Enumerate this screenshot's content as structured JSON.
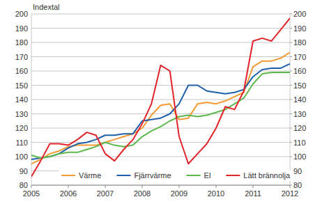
{
  "chart_data": {
    "type": "line",
    "y_label": "Indextal",
    "x": [
      2005,
      2005.25,
      2005.5,
      2005.75,
      2006,
      2006.25,
      2006.5,
      2006.75,
      2007,
      2007.25,
      2007.5,
      2007.75,
      2008,
      2008.25,
      2008.5,
      2008.75,
      2009,
      2009.25,
      2009.5,
      2009.75,
      2010,
      2010.25,
      2010.5,
      2010.75,
      2011,
      2011.25,
      2011.5,
      2011.75,
      2012
    ],
    "series": [
      {
        "name": "Värme",
        "color": "#f39a34",
        "values": [
          95,
          98,
          102,
          104,
          107,
          108,
          108,
          108,
          110,
          112,
          114,
          116,
          120,
          129,
          136,
          137,
          126,
          127,
          137,
          138,
          137,
          139,
          142,
          145,
          163,
          167,
          167,
          169,
          173
        ]
      },
      {
        "name": "Fjärrvärme",
        "color": "#1f5fa9",
        "values": [
          98,
          99,
          100,
          102,
          106,
          109,
          110,
          112,
          115,
          115,
          116,
          116,
          125,
          126,
          127,
          130,
          137,
          150,
          150,
          146,
          145,
          144,
          145,
          147,
          156,
          161,
          162,
          162,
          165
        ]
      },
      {
        "name": "El",
        "color": "#5cb84a",
        "values": [
          101,
          99,
          100,
          102,
          103,
          103,
          105,
          107,
          110,
          108,
          107,
          108,
          114,
          118,
          121,
          125,
          128,
          129,
          128,
          129,
          131,
          133,
          137,
          141,
          151,
          158,
          159,
          159,
          159
        ]
      },
      {
        "name": "Lätt brännolja",
        "color": "#e0242a",
        "values": [
          86,
          97,
          109,
          109,
          108,
          112,
          117,
          115,
          102,
          97,
          105,
          112,
          123,
          137,
          164,
          160,
          114,
          95,
          102,
          109,
          120,
          135,
          133,
          146,
          181,
          183,
          181,
          189,
          197
        ]
      }
    ],
    "xlim": [
      2005,
      2012
    ],
    "xticks": [
      2005,
      2006,
      2007,
      2008,
      2009,
      2010,
      2011,
      2012
    ],
    "ylim": [
      80,
      200
    ],
    "yticks": [
      80,
      90,
      100,
      110,
      120,
      130,
      140,
      150,
      160,
      170,
      180,
      190,
      200
    ],
    "y2lim": [
      80,
      200
    ],
    "y2ticks": [
      80,
      90,
      100,
      110,
      120,
      130,
      140,
      150,
      160,
      170,
      180,
      190,
      200
    ],
    "grid": true,
    "legend": "bottom"
  }
}
